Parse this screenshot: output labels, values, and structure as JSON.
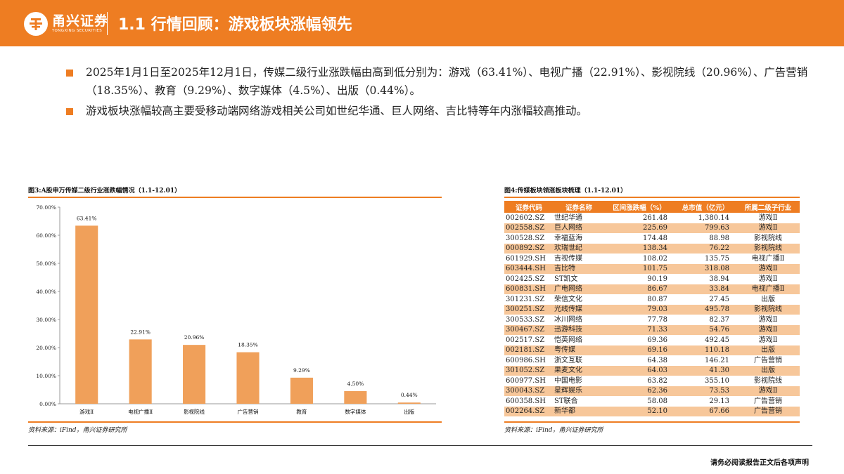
{
  "header": {
    "logo_name": "甬兴证券",
    "logo_sub": "YONGXING SECURITIES",
    "title": "1.1 行情回顾：游戏板块涨幅领先"
  },
  "bullets": [
    "2025年1月1日至2025年12月1日，传媒二级行业涨跌幅由高到低分别为：游戏（63.41%）、电视广播（22.91%）、影视院线（20.96%）、广告营销（18.35%）、教育（9.29%）、数字媒体（4.5%）、出版（0.44%）。",
    "游戏板块涨幅较高主要受移动端网络游戏相关公司如世纪华通、巨人网络、吉比特等年内涨幅较高推动。"
  ],
  "figure3": {
    "title": "图3:A股申万传媒二级行业涨跌幅情况（1.1-12.01）",
    "source": "资料来源：iFind，甬兴证券研究所"
  },
  "figure4": {
    "title": "图4:传媒板块领涨板块梳理（1.1-12.01）",
    "source": "资料来源：iFind，甬兴证券研究所",
    "headers": [
      "证券代码",
      "证券名称",
      "区间涨跌幅（%）",
      "总市值（亿元）",
      "所属二级子行业"
    ],
    "rows": [
      [
        "002602.SZ",
        "世纪华通",
        "261.48",
        "1,380.14",
        "游戏Ⅱ"
      ],
      [
        "002558.SZ",
        "巨人网络",
        "225.69",
        "799.63",
        "游戏Ⅱ"
      ],
      [
        "300528.SZ",
        "幸福蓝海",
        "174.48",
        "88.98",
        "影视院线"
      ],
      [
        "000892.SZ",
        "欢瑞世纪",
        "138.34",
        "76.22",
        "影视院线"
      ],
      [
        "601929.SH",
        "吉视传媒",
        "108.02",
        "135.75",
        "电视广播Ⅱ"
      ],
      [
        "603444.SH",
        "吉比特",
        "101.75",
        "318.08",
        "游戏Ⅱ"
      ],
      [
        "002425.SZ",
        "ST凯文",
        "90.19",
        "38.94",
        "游戏Ⅱ"
      ],
      [
        "600831.SH",
        "广电网络",
        "86.67",
        "33.84",
        "电视广播Ⅱ"
      ],
      [
        "301231.SZ",
        "荣信文化",
        "80.87",
        "27.45",
        "出版"
      ],
      [
        "300251.SZ",
        "光线传媒",
        "79.03",
        "495.78",
        "影视院线"
      ],
      [
        "300533.SZ",
        "冰川网络",
        "77.78",
        "82.37",
        "游戏Ⅱ"
      ],
      [
        "300467.SZ",
        "迅游科技",
        "71.33",
        "54.76",
        "游戏Ⅱ"
      ],
      [
        "002517.SZ",
        "恺英网络",
        "69.36",
        "492.45",
        "游戏Ⅱ"
      ],
      [
        "002181.SZ",
        "粤传媒",
        "69.16",
        "110.18",
        "出版"
      ],
      [
        "600986.SH",
        "浙文互联",
        "64.38",
        "146.21",
        "广告营销"
      ],
      [
        "301052.SZ",
        "果麦文化",
        "64.03",
        "41.30",
        "出版"
      ],
      [
        "600977.SH",
        "中国电影",
        "63.82",
        "355.10",
        "影视院线"
      ],
      [
        "300043.SZ",
        "星辉娱乐",
        "62.36",
        "73.53",
        "游戏Ⅱ"
      ],
      [
        "600358.SH",
        "ST联合",
        "58.08",
        "29.13",
        "广告营销"
      ],
      [
        "002264.SZ",
        "新华都",
        "52.10",
        "67.66",
        "广告营销"
      ]
    ]
  },
  "chart_data": {
    "type": "bar",
    "categories": [
      "游戏Ⅱ",
      "电视广播Ⅱ",
      "影视院线",
      "广告营销",
      "教育",
      "数字媒体",
      "出版"
    ],
    "values": [
      63.41,
      22.91,
      20.96,
      18.35,
      9.29,
      4.5,
      0.44
    ],
    "data_labels": [
      "63.41%",
      "22.91%",
      "20.96%",
      "18.35%",
      "9.29%",
      "4.50%",
      "0.44%"
    ],
    "y_ticks": [
      "0.00%",
      "10.00%",
      "20.00%",
      "30.00%",
      "40.00%",
      "50.00%",
      "60.00%",
      "70.00%"
    ],
    "ylim": [
      0,
      70
    ],
    "bar_color": "#f0a05a",
    "grid": false
  },
  "footer": {
    "text": "请务必阅读报告正文后各项声明"
  },
  "colors": {
    "accent": "#ee7d22",
    "row_band": "#f7c79a"
  }
}
